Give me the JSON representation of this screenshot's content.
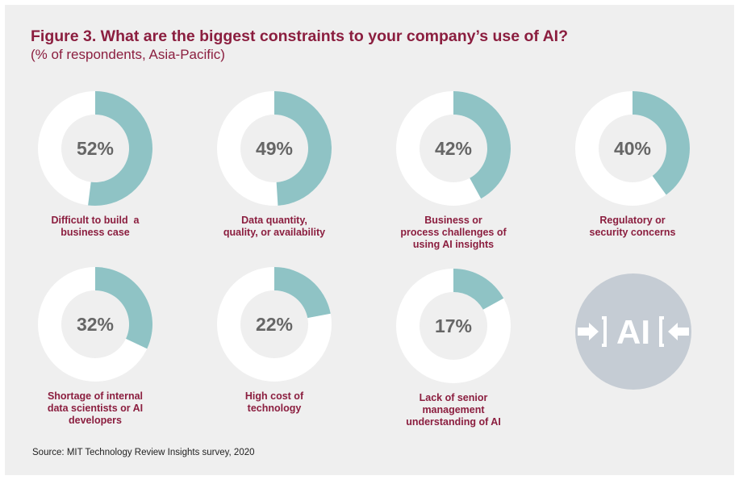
{
  "title": "Figure 3. What are the biggest constraints to your company’s use of AI?",
  "subtitle": "(% of respondents, Asia-Pacific)",
  "source": "Source: MIT Technology Review Insights survey, 2020",
  "colors": {
    "accent": "#8b1e3f",
    "filled": "#8fc3c5",
    "unfilled": "#ffffff",
    "badge": "#c5ccd4"
  },
  "badge": {
    "icon": "ai-arrows-icon",
    "text": "AI"
  },
  "chart_data": {
    "type": "pie",
    "variant": "donut-small-multiples",
    "categories": [
      "Difficult to build a business case",
      "Data quantity, quality, or availability",
      "Business or process challenges of using AI insights",
      "Regulatory or security concerns",
      "Shortage of internal data scientists or AI developers",
      "High cost of technology",
      "Lack of senior management understanding of AI"
    ],
    "values": [
      52,
      49,
      42,
      40,
      32,
      22,
      17
    ],
    "unit": "%",
    "items": [
      {
        "label_lines": [
          "Difficult to build  a",
          "business case"
        ],
        "value": 52,
        "value_label": "52%"
      },
      {
        "label_lines": [
          "Data quantity,",
          "quality, or availability"
        ],
        "value": 49,
        "value_label": "49%"
      },
      {
        "label_lines": [
          "Business or",
          "process challenges of",
          "using AI insights"
        ],
        "value": 42,
        "value_label": "42%"
      },
      {
        "label_lines": [
          "Regulatory or",
          "security concerns"
        ],
        "value": 40,
        "value_label": "40%"
      },
      {
        "label_lines": [
          "Shortage of internal",
          "data scientists or AI",
          "developers"
        ],
        "value": 32,
        "value_label": "32%"
      },
      {
        "label_lines": [
          "High cost of",
          "technology"
        ],
        "value": 22,
        "value_label": "22%"
      },
      {
        "label_lines": [
          "Lack of senior",
          "management",
          "understanding of AI"
        ],
        "value": 17,
        "value_label": "17%"
      }
    ]
  }
}
